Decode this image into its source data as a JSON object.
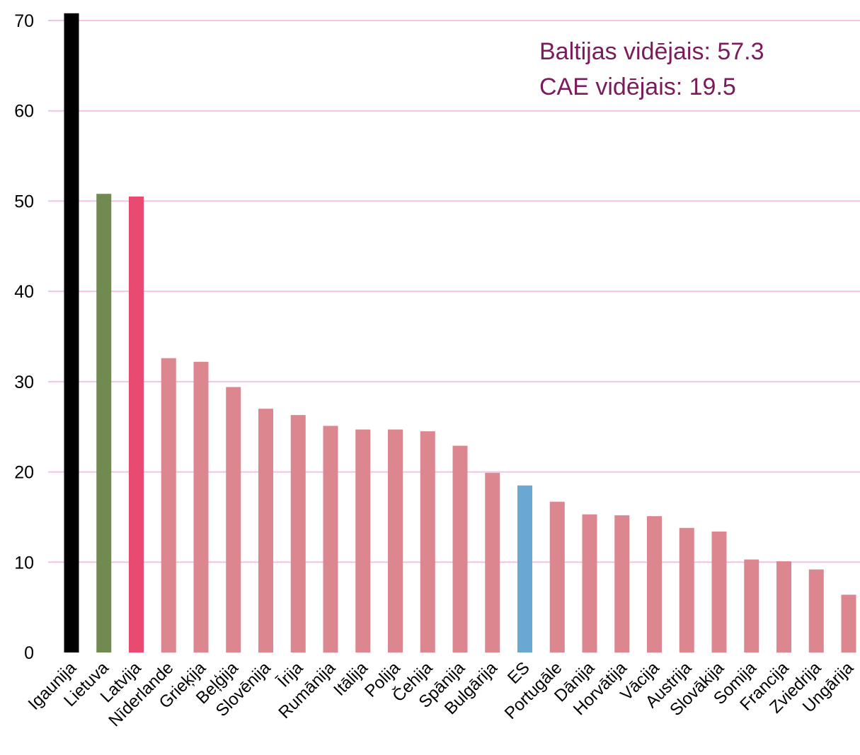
{
  "chart_data": {
    "type": "bar",
    "categories": [
      "Igaunija",
      "Lietuva",
      "Latvija",
      "Nīderlande",
      "Grieķija",
      "Beļģija",
      "Slovēnija",
      "Īrija",
      "Rumānija",
      "Itālija",
      "Polija",
      "Čehija",
      "Spānija",
      "Bulgārija",
      "ES",
      "Portugāle",
      "Dānija",
      "Horvātija",
      "Vācija",
      "Austrija",
      "Slovākija",
      "Somija",
      "Francija",
      "Zviedrija",
      "Ungārija"
    ],
    "values": [
      70.8,
      50.8,
      50.5,
      32.6,
      32.2,
      29.4,
      27.0,
      26.3,
      25.1,
      24.7,
      24.7,
      24.5,
      22.9,
      19.9,
      18.5,
      16.7,
      15.3,
      15.2,
      15.1,
      13.8,
      13.4,
      10.3,
      10.1,
      9.2,
      6.4
    ],
    "colors": [
      "#000000",
      "#708a52",
      "#e84a72",
      "#dc868f",
      "#dc868f",
      "#dc868f",
      "#dc868f",
      "#dc868f",
      "#dc868f",
      "#dc868f",
      "#dc868f",
      "#dc868f",
      "#dc868f",
      "#dc868f",
      "#6aa8d2",
      "#dc868f",
      "#dc868f",
      "#dc868f",
      "#dc868f",
      "#dc868f",
      "#dc868f",
      "#dc868f",
      "#dc868f",
      "#dc868f",
      "#dc868f"
    ],
    "ylim": [
      0,
      70
    ],
    "yticks": [
      0,
      10,
      20,
      30,
      40,
      50,
      60,
      70
    ],
    "grid": true,
    "grid_color": "#f0c4e2",
    "title": "",
    "xlabel": "",
    "ylabel": "",
    "annotations": [
      "Baltijas vidējais: 57.3",
      "CAE vidējais: 19.5"
    ],
    "annotation_color": "#7a1c5a"
  }
}
